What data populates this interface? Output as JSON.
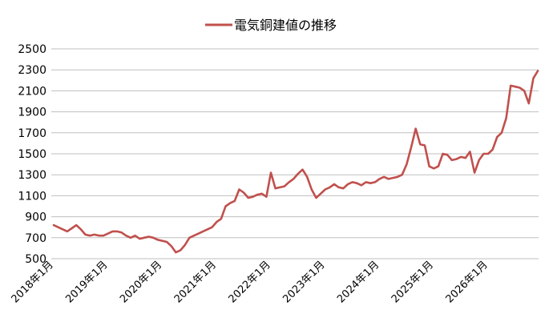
{
  "chart_data": {
    "type": "line",
    "legend_position": "top-center",
    "grid": "horizontal",
    "ylim": [
      500,
      2500
    ],
    "yticks": [
      "2500",
      "2300",
      "2100",
      "1900",
      "1700",
      "1500",
      "1300",
      "1100",
      "900",
      "700",
      "500"
    ],
    "xticks": [
      "2018年1月",
      "2019年1月",
      "2020年1月",
      "2021年1月",
      "2022年1月",
      "2023年1月",
      "2024年1月",
      "2025年1月",
      "2026年1月"
    ],
    "series": [
      {
        "name": "電気銅建値の推移",
        "color": "#C0504D",
        "points": [
          [
            "2018-01",
            820
          ],
          [
            "2018-02",
            800
          ],
          [
            "2018-03",
            780
          ],
          [
            "2018-04",
            760
          ],
          [
            "2018-05",
            790
          ],
          [
            "2018-06",
            820
          ],
          [
            "2018-07",
            780
          ],
          [
            "2018-08",
            730
          ],
          [
            "2018-09",
            720
          ],
          [
            "2018-10",
            730
          ],
          [
            "2018-11",
            720
          ],
          [
            "2018-12",
            720
          ],
          [
            "2019-01",
            740
          ],
          [
            "2019-02",
            760
          ],
          [
            "2019-03",
            760
          ],
          [
            "2019-04",
            750
          ],
          [
            "2019-05",
            720
          ],
          [
            "2019-06",
            700
          ],
          [
            "2019-07",
            720
          ],
          [
            "2019-08",
            690
          ],
          [
            "2019-09",
            700
          ],
          [
            "2019-10",
            710
          ],
          [
            "2019-11",
            700
          ],
          [
            "2019-12",
            680
          ],
          [
            "2020-01",
            670
          ],
          [
            "2020-02",
            660
          ],
          [
            "2020-03",
            620
          ],
          [
            "2020-04",
            560
          ],
          [
            "2020-05",
            580
          ],
          [
            "2020-06",
            630
          ],
          [
            "2020-07",
            700
          ],
          [
            "2020-08",
            720
          ],
          [
            "2020-09",
            740
          ],
          [
            "2020-10",
            760
          ],
          [
            "2020-11",
            780
          ],
          [
            "2020-12",
            800
          ],
          [
            "2021-01",
            850
          ],
          [
            "2021-02",
            880
          ],
          [
            "2021-03",
            1000
          ],
          [
            "2021-04",
            1030
          ],
          [
            "2021-05",
            1050
          ],
          [
            "2021-06",
            1160
          ],
          [
            "2021-07",
            1130
          ],
          [
            "2021-08",
            1080
          ],
          [
            "2021-09",
            1090
          ],
          [
            "2021-10",
            1110
          ],
          [
            "2021-11",
            1120
          ],
          [
            "2021-12",
            1090
          ],
          [
            "2022-01",
            1320
          ],
          [
            "2022-02",
            1170
          ],
          [
            "2022-03",
            1180
          ],
          [
            "2022-04",
            1190
          ],
          [
            "2022-05",
            1230
          ],
          [
            "2022-06",
            1260
          ],
          [
            "2022-07",
            1310
          ],
          [
            "2022-08",
            1350
          ],
          [
            "2022-09",
            1280
          ],
          [
            "2022-10",
            1160
          ],
          [
            "2022-11",
            1080
          ],
          [
            "2022-12",
            1120
          ],
          [
            "2023-01",
            1160
          ],
          [
            "2023-02",
            1180
          ],
          [
            "2023-03",
            1210
          ],
          [
            "2023-04",
            1180
          ],
          [
            "2023-05",
            1170
          ],
          [
            "2023-06",
            1210
          ],
          [
            "2023-07",
            1230
          ],
          [
            "2023-08",
            1220
          ],
          [
            "2023-09",
            1200
          ],
          [
            "2023-10",
            1230
          ],
          [
            "2023-11",
            1220
          ],
          [
            "2023-12",
            1230
          ],
          [
            "2024-01",
            1260
          ],
          [
            "2024-02",
            1280
          ],
          [
            "2024-03",
            1260
          ],
          [
            "2024-04",
            1270
          ],
          [
            "2024-05",
            1280
          ],
          [
            "2024-06",
            1300
          ],
          [
            "2024-07",
            1400
          ],
          [
            "2024-08",
            1560
          ],
          [
            "2024-09",
            1740
          ],
          [
            "2024-10",
            1590
          ],
          [
            "2024-11",
            1580
          ],
          [
            "2024-12",
            1380
          ],
          [
            "2025-01",
            1360
          ],
          [
            "2025-02",
            1380
          ],
          [
            "2025-03",
            1500
          ],
          [
            "2025-04",
            1490
          ],
          [
            "2025-05",
            1440
          ],
          [
            "2025-06",
            1450
          ],
          [
            "2025-07",
            1470
          ],
          [
            "2025-08",
            1460
          ],
          [
            "2025-09",
            1520
          ],
          [
            "2025-10",
            1320
          ],
          [
            "2025-11",
            1440
          ],
          [
            "2025-12",
            1500
          ],
          [
            "2026-01",
            1500
          ],
          [
            "2026-02",
            1540
          ],
          [
            "2026-03",
            1660
          ],
          [
            "2026-04",
            1700
          ],
          [
            "2026-05",
            1840
          ],
          [
            "2026-06",
            2150
          ],
          [
            "2026-07",
            2140
          ],
          [
            "2026-08",
            2130
          ],
          [
            "2026-09",
            2100
          ],
          [
            "2026-10",
            1980
          ],
          [
            "2026-11",
            2220
          ],
          [
            "2026-12",
            2290
          ]
        ]
      }
    ]
  }
}
